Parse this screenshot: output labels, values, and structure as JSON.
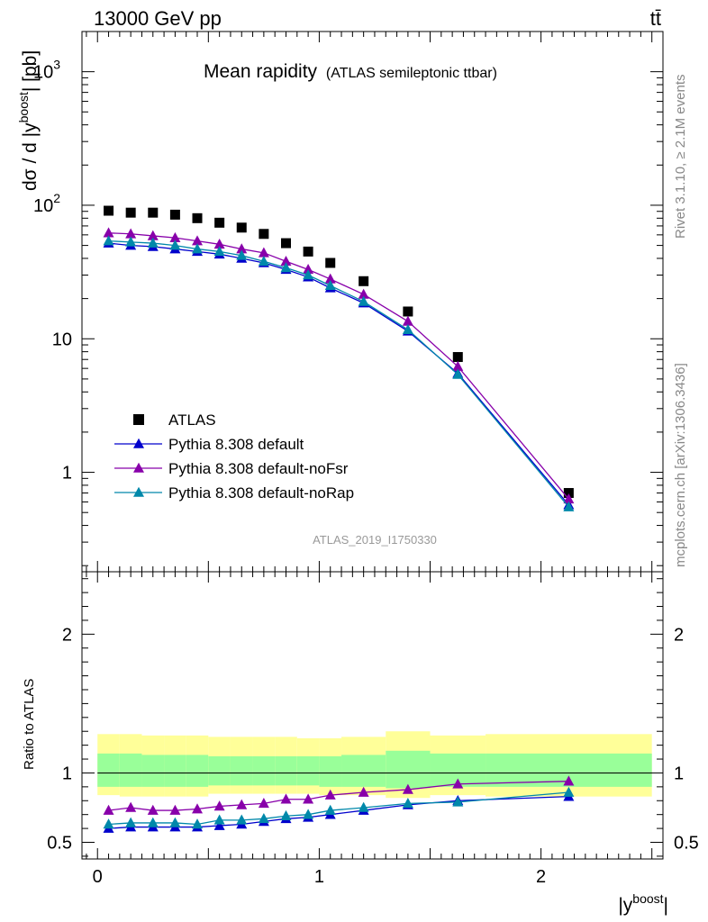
{
  "header": {
    "left_text": "13000 GeV pp",
    "right_text": "tt̄"
  },
  "side_text": {
    "rivet": "Rivet 3.1.10, ≥ 2.1M events",
    "mcplots": "mcplots.cern.ch [arXiv:1306.3436]"
  },
  "chart_data": [
    {
      "type": "scatter",
      "title": "Mean rapidity",
      "subtitle": "(ATLAS semileptonic ttbar)",
      "ylabel": "dσ / d |y^boost| [pb]",
      "xlabel": "|y^boost|",
      "analysis_tag": "ATLAS_2019_I1750330",
      "yscale": "log",
      "xlim": [
        -0.07,
        2.55
      ],
      "ylim": [
        0.18,
        2000
      ],
      "y_ticks": [
        {
          "v": 1000,
          "label": "10^3"
        },
        {
          "v": 100,
          "label": "10^2"
        },
        {
          "v": 10,
          "label": "10"
        },
        {
          "v": 1,
          "label": "1"
        }
      ],
      "x": [
        0.05,
        0.15,
        0.25,
        0.35,
        0.45,
        0.55,
        0.65,
        0.75,
        0.85,
        0.95,
        1.05,
        1.2,
        1.4,
        1.625,
        2.125
      ],
      "series": [
        {
          "name": "ATLAS",
          "color": "#000000",
          "marker": "square",
          "values": [
            91,
            88,
            88,
            85,
            80,
            74,
            68,
            61,
            52,
            45,
            37,
            27,
            16,
            7.3,
            0.7
          ]
        },
        {
          "name": "Pythia 8.308 default",
          "color": "#0000cc",
          "marker": "triangle",
          "values": [
            52,
            50,
            49,
            47,
            45,
            43,
            40,
            37,
            33,
            29,
            24,
            18.5,
            11.4,
            5.5,
            0.57
          ]
        },
        {
          "name": "Pythia 8.308 default-noFsr",
          "color": "#8800aa",
          "marker": "triangle",
          "values": [
            62,
            61,
            59,
            57,
            54,
            51,
            47,
            44,
            38,
            33,
            28,
            21.5,
            13.5,
            6.2,
            0.63
          ]
        },
        {
          "name": "Pythia 8.308 default-noRap",
          "color": "#0088aa",
          "marker": "triangle",
          "values": [
            54,
            53,
            52,
            50,
            47,
            45,
            42,
            38,
            34,
            30,
            25,
            19,
            11.7,
            5.4,
            0.55
          ]
        }
      ]
    },
    {
      "type": "line",
      "ylabel": "Ratio to ATLAS",
      "ylim": [
        0.38,
        2.45
      ],
      "y_ticks": [
        {
          "v": 2,
          "label": "2"
        },
        {
          "v": 1,
          "label": "1"
        },
        {
          "v": 0.5,
          "label": "0.5"
        }
      ],
      "x_ticks": [
        {
          "v": 0,
          "label": "0"
        },
        {
          "v": 1,
          "label": "1"
        },
        {
          "v": 2,
          "label": "2"
        }
      ],
      "x": [
        0.05,
        0.15,
        0.25,
        0.35,
        0.45,
        0.55,
        0.65,
        0.75,
        0.85,
        0.95,
        1.05,
        1.2,
        1.4,
        1.625,
        2.125
      ],
      "bands": {
        "edges": [
          0,
          0.1,
          0.2,
          0.3,
          0.4,
          0.5,
          0.6,
          0.7,
          0.8,
          0.9,
          1.0,
          1.1,
          1.3,
          1.5,
          1.75,
          2.5
        ],
        "yellow_lo": [
          0.84,
          0.83,
          0.83,
          0.83,
          0.83,
          0.85,
          0.85,
          0.85,
          0.85,
          0.85,
          0.84,
          0.84,
          0.82,
          0.84,
          0.83
        ],
        "yellow_hi": [
          1.28,
          1.28,
          1.27,
          1.27,
          1.27,
          1.26,
          1.26,
          1.26,
          1.26,
          1.25,
          1.25,
          1.26,
          1.3,
          1.27,
          1.28
        ],
        "green_lo": [
          0.9,
          0.9,
          0.9,
          0.9,
          0.9,
          0.91,
          0.91,
          0.91,
          0.91,
          0.91,
          0.9,
          0.9,
          0.89,
          0.9,
          0.9
        ],
        "green_hi": [
          1.14,
          1.14,
          1.13,
          1.13,
          1.13,
          1.12,
          1.12,
          1.12,
          1.12,
          1.12,
          1.12,
          1.13,
          1.16,
          1.14,
          1.14
        ],
        "yellow_color": "#ffff99",
        "green_color": "#99ff99"
      },
      "series": [
        {
          "name": "Pythia 8.308 default",
          "color": "#0000cc",
          "values": [
            0.6,
            0.61,
            0.61,
            0.61,
            0.61,
            0.62,
            0.63,
            0.65,
            0.67,
            0.68,
            0.7,
            0.73,
            0.77,
            0.8,
            0.83
          ]
        },
        {
          "name": "Pythia 8.308 default-noFsr",
          "color": "#8800aa",
          "values": [
            0.73,
            0.75,
            0.73,
            0.73,
            0.74,
            0.76,
            0.77,
            0.78,
            0.81,
            0.81,
            0.84,
            0.86,
            0.88,
            0.92,
            0.94
          ]
        },
        {
          "name": "Pythia 8.308 default-noRap",
          "color": "#0088aa",
          "values": [
            0.63,
            0.64,
            0.64,
            0.64,
            0.63,
            0.66,
            0.66,
            0.67,
            0.69,
            0.7,
            0.73,
            0.75,
            0.78,
            0.79,
            0.86
          ]
        }
      ]
    }
  ]
}
